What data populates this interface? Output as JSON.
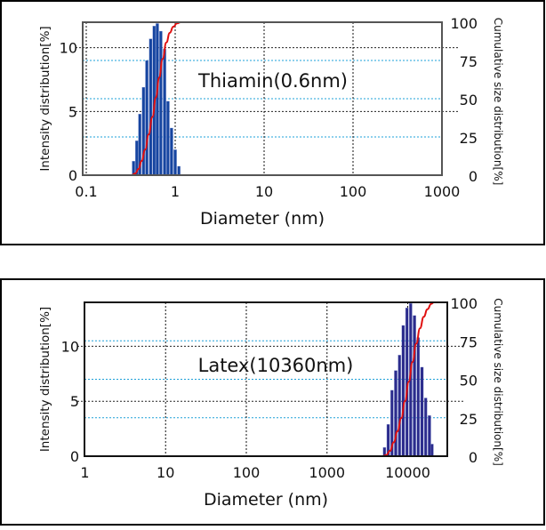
{
  "chart_data": [
    {
      "type": "bar",
      "annotation": "Thiamin(0.6nm)",
      "xlabel": "Diameter (nm)",
      "ylabel": "Intensity distribution[%]",
      "y2label": "Cumulative size distribution[%]",
      "xscale": "log",
      "xlim": [
        0.1,
        1000
      ],
      "xticks": [
        "0.1",
        "1",
        "10",
        "100",
        "1000"
      ],
      "xtick_values": [
        0.1,
        1,
        10,
        100,
        1000
      ],
      "ylim": [
        0,
        12
      ],
      "yticks": [
        0,
        5,
        10
      ],
      "y2lim": [
        0,
        100
      ],
      "y2ticks": [
        0,
        25,
        50,
        75,
        100
      ],
      "grid": true,
      "bar_color": "#1645a0",
      "cumulative_color": "#e01010",
      "series": [
        {
          "name": "Intensity distribution",
          "x": [
            0.34,
            0.37,
            0.4,
            0.44,
            0.48,
            0.53,
            0.58,
            0.63,
            0.69,
            0.76,
            0.83,
            0.91,
            1.0,
            1.1
          ],
          "values": [
            1.1,
            2.7,
            4.8,
            6.9,
            9.0,
            10.7,
            11.7,
            11.9,
            11.3,
            9.9,
            5.8,
            3.7,
            2.0,
            0.7
          ]
        },
        {
          "name": "Cumulative size distribution",
          "derived": "cumulative"
        }
      ]
    },
    {
      "type": "bar",
      "annotation": "Latex(10360nm)",
      "xlabel": "Diameter (nm)",
      "ylabel": "Intensity distribution[%]",
      "y2label": "Cumulative size distribution[%]",
      "xscale": "log",
      "xlim": [
        1,
        30000
      ],
      "xticks": [
        "1",
        "10",
        "100",
        "1000",
        "10000"
      ],
      "xtick_values": [
        1,
        10,
        100,
        1000,
        10000
      ],
      "ylim": [
        0,
        14
      ],
      "yticks": [
        0,
        5,
        10
      ],
      "y2lim": [
        0,
        100
      ],
      "y2ticks": [
        0,
        25,
        50,
        75,
        100
      ],
      "grid": true,
      "bar_color": "#2b2b8c",
      "cumulative_color": "#e01010",
      "series": [
        {
          "name": "Intensity distribution",
          "x": [
            5150,
            5730,
            6380,
            7100,
            7900,
            8790,
            9780,
            10880,
            12110,
            13480,
            15000,
            16690,
            18570,
            20000
          ],
          "values": [
            0.8,
            2.9,
            6.0,
            7.8,
            9.2,
            11.9,
            13.5,
            13.9,
            12.8,
            10.8,
            8.1,
            5.3,
            3.7,
            1.1
          ]
        },
        {
          "name": "Cumulative size distribution",
          "derived": "cumulative"
        }
      ]
    }
  ]
}
